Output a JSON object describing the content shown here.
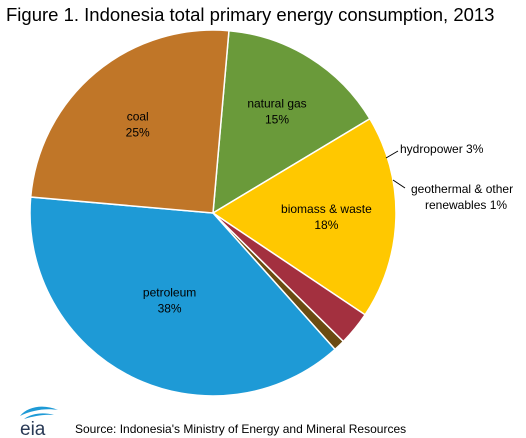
{
  "chart_data": {
    "type": "pie",
    "title": "Figure 1. Indonesia total primary energy consumption, 2013",
    "slices": [
      {
        "name": "natural gas",
        "value": 15,
        "label": "15%",
        "color": "#6a9a3a"
      },
      {
        "name": "biomass & waste",
        "value": 18,
        "label": "18%",
        "color": "#ffc800"
      },
      {
        "name": "hydropower",
        "value": 3,
        "label": "3%",
        "color": "#a3303f"
      },
      {
        "name": "geothermal & other renewables",
        "value": 1,
        "label": "1%",
        "color": "#6b4b12"
      },
      {
        "name": "petroleum",
        "value": 38,
        "label": "38%",
        "color": "#1e9ad6"
      },
      {
        "name": "coal",
        "value": 25,
        "label": "25%",
        "color": "#c07628"
      }
    ],
    "external_labels": {
      "hydropower": "hydropower  3%",
      "geothermal_line1": "geothermal  & other",
      "geothermal_line2": "renewables  1%"
    }
  },
  "footer": {
    "logo_text": "eia",
    "source": "Source: Indonesia's Ministry of Energy and Mineral Resources"
  }
}
